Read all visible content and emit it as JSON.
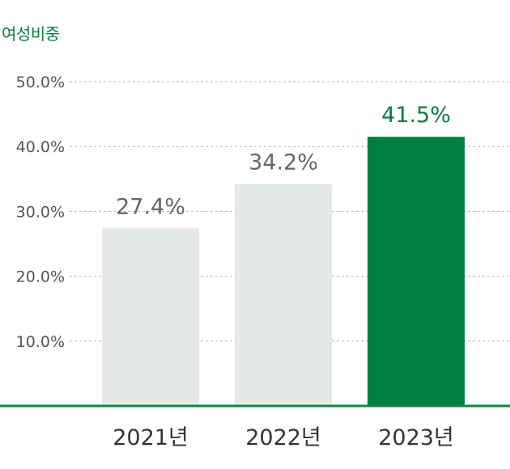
{
  "chart_data": {
    "type": "bar",
    "title": "여성비중",
    "categories": [
      "2021년",
      "2022년",
      "2023년"
    ],
    "values": [
      27.4,
      34.2,
      41.5
    ],
    "value_labels": [
      "27.4%",
      "34.2%",
      "41.5%"
    ],
    "ylim": [
      0,
      50
    ],
    "y_ticks": [
      {
        "value": 10,
        "label": "10.0%"
      },
      {
        "value": 20,
        "label": "20.0%"
      },
      {
        "value": 30,
        "label": "30.0%"
      },
      {
        "value": 40,
        "label": "40.0%"
      },
      {
        "value": 50,
        "label": "50.0%"
      }
    ],
    "grid": true,
    "highlight_index": 2,
    "colors": {
      "bar": "#e4e9e7",
      "highlight": "#008040",
      "label": "#666666",
      "highlight_label": "#0a7c3e",
      "axis": "#0a8a45",
      "grid": "#b5b5b5",
      "tick_label": "#555555",
      "category_label": "#333333"
    }
  }
}
